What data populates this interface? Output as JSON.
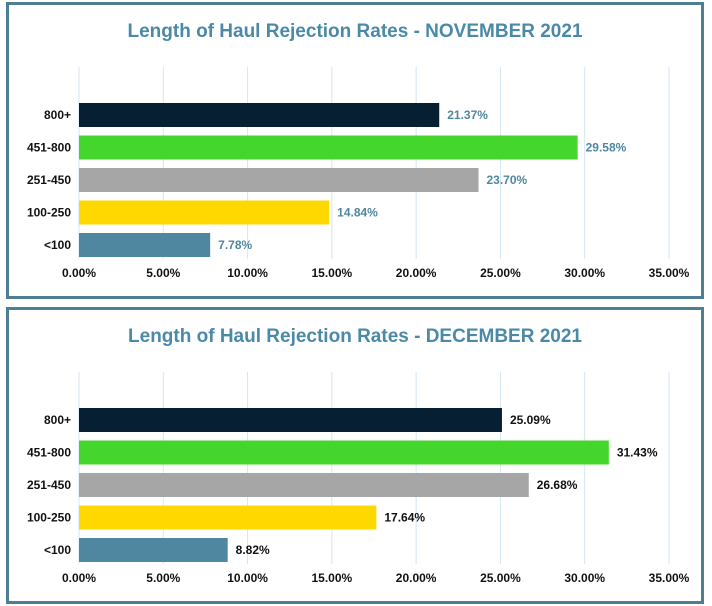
{
  "chart_data": [
    {
      "type": "bar",
      "orientation": "horizontal",
      "title": "Length of Haul Rejection Rates - NOVEMBER 2021",
      "categories": [
        "800+",
        "451-800",
        "251-450",
        "100-250",
        "<100"
      ],
      "values": [
        21.37,
        29.58,
        23.7,
        14.84,
        7.78
      ],
      "value_labels": [
        "21.37%",
        "29.58%",
        "23.70%",
        "14.84%",
        "7.78%"
      ],
      "colors": [
        "#061f33",
        "#45d62e",
        "#a6a6a6",
        "#ffd800",
        "#4f87a0"
      ],
      "value_label_color": "#4f87a0",
      "xlim": [
        0,
        35
      ],
      "xticks": [
        "0.00%",
        "5.00%",
        "10.00%",
        "15.00%",
        "20.00%",
        "25.00%",
        "30.00%",
        "35.00%"
      ],
      "grid": true,
      "legend": "none"
    },
    {
      "type": "bar",
      "orientation": "horizontal",
      "title": "Length of Haul Rejection Rates - DECEMBER 2021",
      "categories": [
        "800+",
        "451-800",
        "251-450",
        "100-250",
        "<100"
      ],
      "values": [
        25.09,
        31.43,
        26.68,
        17.64,
        8.82
      ],
      "value_labels": [
        "25.09%",
        "31.43%",
        "26.68%",
        "17.64%",
        "8.82%"
      ],
      "colors": [
        "#061f33",
        "#45d62e",
        "#a6a6a6",
        "#ffd800",
        "#4f87a0"
      ],
      "value_label_color": "#111111",
      "xlim": [
        0,
        35
      ],
      "xticks": [
        "0.00%",
        "5.00%",
        "10.00%",
        "15.00%",
        "20.00%",
        "25.00%",
        "30.00%",
        "35.00%"
      ],
      "grid": true,
      "legend": "none"
    }
  ]
}
